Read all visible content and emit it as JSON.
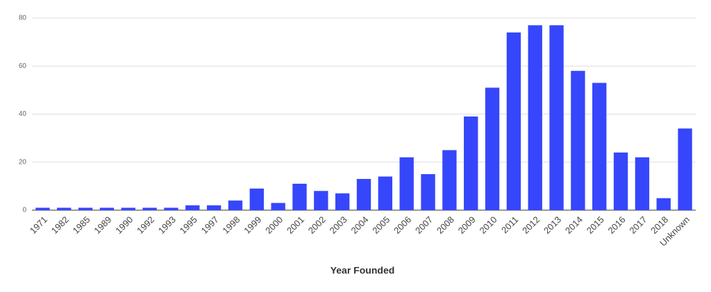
{
  "chart_data": {
    "type": "bar",
    "x_label": "Year Founded",
    "categories": [
      "1971",
      "1982",
      "1985",
      "1989",
      "1990",
      "1992",
      "1993",
      "1995",
      "1997",
      "1998",
      "1999",
      "2000",
      "2001",
      "2002",
      "2003",
      "2004",
      "2005",
      "2006",
      "2007",
      "2008",
      "2009",
      "2010",
      "2011",
      "2012",
      "2013",
      "2014",
      "2015",
      "2016",
      "2017",
      "2018",
      "Unknown"
    ],
    "values": [
      1,
      1,
      1,
      1,
      1,
      1,
      1,
      2,
      2,
      4,
      9,
      3,
      11,
      8,
      7,
      13,
      14,
      22,
      15,
      25,
      39,
      51,
      74,
      77,
      77,
      58,
      53,
      24,
      22,
      5,
      34
    ],
    "color": "#3646fb",
    "ylim": [
      0,
      80
    ],
    "yticks": [
      0,
      20,
      40,
      60,
      80
    ],
    "grid": true
  }
}
